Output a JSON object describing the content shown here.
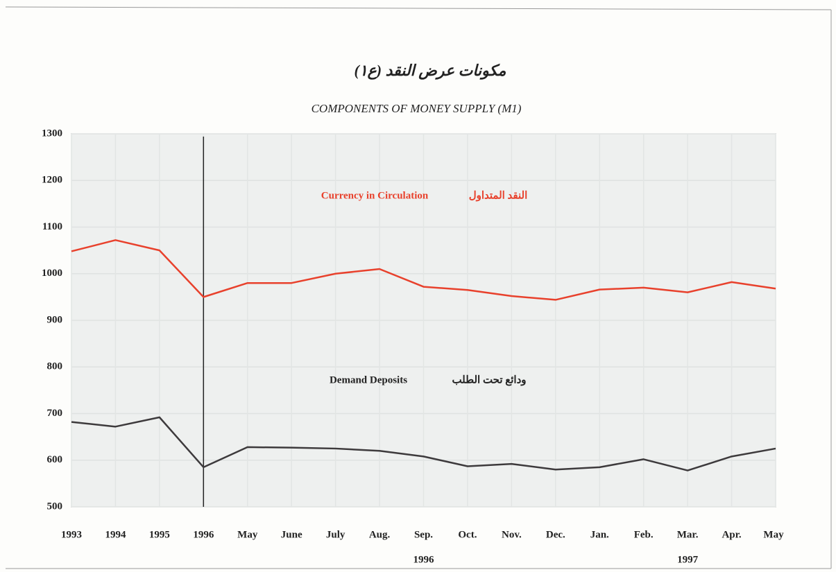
{
  "chart_data": {
    "type": "line",
    "title_ar": "مكونات عرض النقد (ع١)",
    "title": "COMPONENTS OF MONEY SUPPLY (M1)",
    "categories": [
      "1993",
      "1994",
      "1995",
      "1996",
      "May",
      "June",
      "July",
      "Aug.",
      "Sep.",
      "Oct.",
      "Nov.",
      "Dec.",
      "Jan.",
      "Feb.",
      "Mar.",
      "Apr.",
      "May"
    ],
    "x_group_labels": [
      "1996",
      "1997"
    ],
    "series": [
      {
        "name": "Currency in Circulation",
        "name_ar": "النقد المتداول",
        "color": "#e8412c",
        "values": [
          1048,
          1072,
          1050,
          950,
          980,
          980,
          1000,
          1010,
          972,
          965,
          952,
          944,
          966,
          970,
          960,
          982,
          968
        ]
      },
      {
        "name": "Demand Deposits",
        "name_ar": "ودائع تحت الطلب",
        "color": "#3d3a3c",
        "values": [
          682,
          672,
          692,
          585,
          628,
          627,
          625,
          620,
          608,
          587,
          592,
          580,
          585,
          602,
          578,
          608,
          625
        ]
      }
    ],
    "ylim": [
      500,
      1300
    ],
    "yticks": [
      500,
      600,
      700,
      800,
      900,
      1000,
      1100,
      1200,
      1300
    ],
    "grid": true
  }
}
